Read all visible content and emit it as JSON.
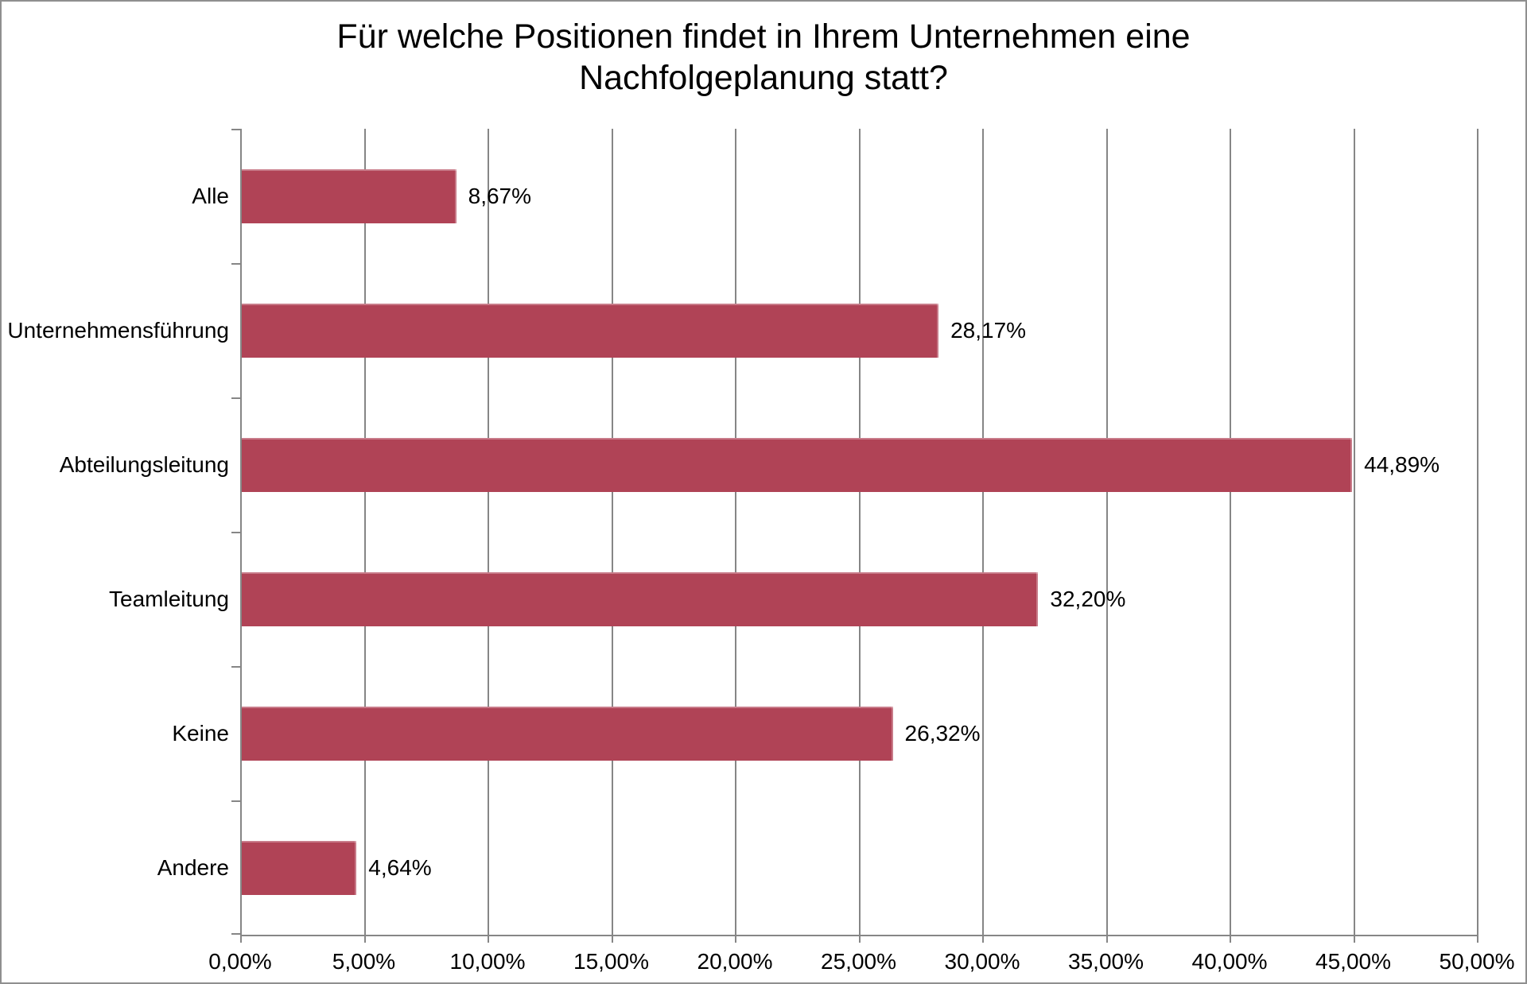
{
  "chart_data": {
    "type": "bar",
    "orientation": "horizontal",
    "title": "Für welche Positionen findet in Ihrem Unternehmen eine Nachfolgeplanung statt?",
    "xlabel": "",
    "ylabel": "",
    "categories": [
      "Alle",
      "Unternehmensführung",
      "Abteilungsleitung",
      "Teamleitung",
      "Keine",
      "Andere"
    ],
    "values": [
      8.67,
      28.17,
      44.89,
      32.2,
      26.32,
      4.64
    ],
    "value_labels": [
      "8,67%",
      "28,17%",
      "44,89%",
      "32,20%",
      "26,32%",
      "4,64%"
    ],
    "xlim": [
      0,
      50
    ],
    "x_tick_labels": [
      "0,00%",
      "5,00%",
      "10,00%",
      "15,00%",
      "20,00%",
      "25,00%",
      "30,00%",
      "35,00%",
      "40,00%",
      "45,00%",
      "50,00%"
    ],
    "grid": true,
    "legend": "none",
    "bar_color": "#B04356",
    "gridline_color": "#868686",
    "text_color": "#000000",
    "background_color": "#FFFFFF"
  }
}
